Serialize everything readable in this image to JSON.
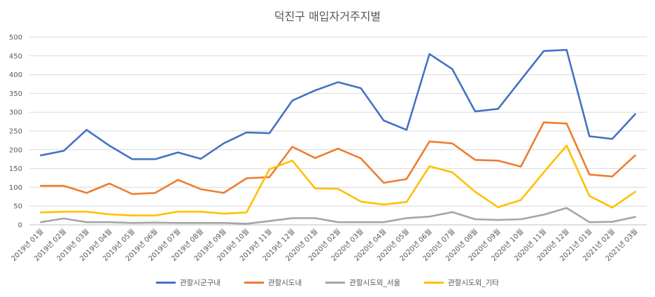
{
  "chart_data": {
    "type": "line",
    "title": "덕진구 매입자거주지별",
    "xlabel": "",
    "ylabel": "",
    "ylim": [
      0,
      500
    ],
    "yticks": [
      0,
      50,
      100,
      150,
      200,
      250,
      300,
      350,
      400,
      450,
      500
    ],
    "grid": true,
    "legend_position": "bottom",
    "categories": [
      "2019년 01월",
      "2019년 02월",
      "2019년 03월",
      "2019년 04월",
      "2019년 05월",
      "2019년 06월",
      "2019년 07월",
      "2019년 08월",
      "2019년 09월",
      "2019년 10월",
      "2019년 11월",
      "2019년 12월",
      "2020년 01월",
      "2020년 02월",
      "2020년 03월",
      "2020년 04월",
      "2020년 05월",
      "2020년 06월",
      "2020년 07월",
      "2020년 08월",
      "2020년 09월",
      "2020년 10월",
      "2020년 11월",
      "2020년 12월",
      "2021년 01월",
      "2021년 02월",
      "2021년 03월"
    ],
    "series": [
      {
        "name": "관할시군구내",
        "color": "#4472c4",
        "values": [
          185,
          197,
          253,
          211,
          175,
          175,
          193,
          176,
          217,
          246,
          244,
          331,
          358,
          380,
          364,
          278,
          253,
          455,
          415,
          302,
          309,
          386,
          463,
          466,
          236,
          229,
          295
        ]
      },
      {
        "name": "관할시도내",
        "color": "#ed7d31",
        "values": [
          104,
          104,
          85,
          110,
          82,
          85,
          120,
          95,
          85,
          124,
          127,
          208,
          178,
          203,
          177,
          112,
          122,
          222,
          217,
          173,
          171,
          155,
          273,
          270,
          134,
          129,
          185
        ]
      },
      {
        "name": "관할시도외_서울",
        "color": "#a5a5a5",
        "values": [
          7,
          17,
          7,
          7,
          5,
          6,
          5,
          5,
          5,
          3,
          10,
          18,
          18,
          7,
          7,
          7,
          18,
          22,
          34,
          15,
          13,
          15,
          27,
          45,
          7,
          8,
          21
        ]
      },
      {
        "name": "관할시도외_기타",
        "color": "#ffc000",
        "values": [
          33,
          35,
          35,
          28,
          25,
          25,
          35,
          35,
          30,
          33,
          148,
          171,
          97,
          96,
          62,
          54,
          61,
          156,
          140,
          88,
          47,
          66,
          140,
          211,
          77,
          46,
          88
        ]
      }
    ]
  }
}
